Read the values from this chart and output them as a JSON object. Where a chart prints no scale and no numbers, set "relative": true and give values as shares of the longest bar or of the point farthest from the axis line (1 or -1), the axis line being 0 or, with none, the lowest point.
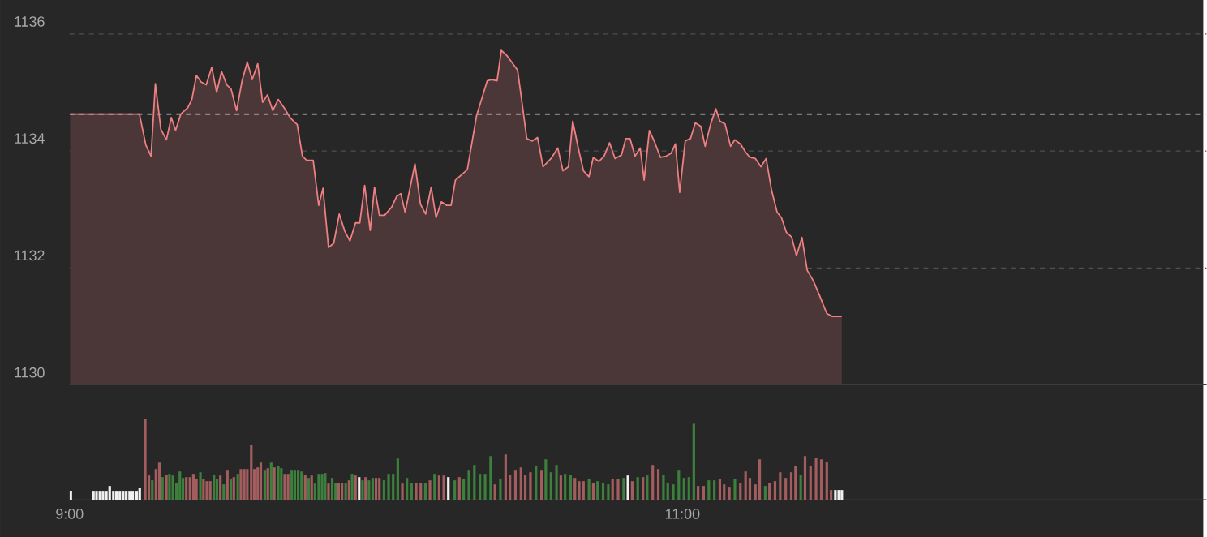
{
  "chart_data": [
    {
      "type": "area",
      "xlim": [
        9,
        12.71
      ],
      "ylim": [
        1130,
        1136.58
      ],
      "yticks": [
        1130,
        1132,
        1134,
        1136
      ],
      "grid": "y",
      "tick_labels": "y",
      "color": "#ee7f82",
      "ref_lines": [
        {
          "axis": "y",
          "value": 1134.63,
          "color": "#d0d0d0",
          "line_style": "dashed"
        }
      ],
      "x": [
        9.002,
        9.228,
        9.249,
        9.266,
        9.28,
        9.298,
        9.316,
        9.332,
        9.346,
        9.363,
        9.386,
        9.399,
        9.414,
        9.429,
        9.446,
        9.464,
        9.48,
        9.496,
        9.513,
        9.527,
        9.545,
        9.563,
        9.58,
        9.596,
        9.614,
        9.63,
        9.646,
        9.663,
        9.681,
        9.7,
        9.721,
        9.743,
        9.76,
        9.774,
        9.795,
        9.813,
        9.827,
        9.845,
        9.862,
        9.88,
        9.898,
        9.915,
        9.933,
        9.947,
        9.963,
        9.981,
        9.995,
        10.011,
        10.028,
        10.051,
        10.067,
        10.081,
        10.095,
        10.127,
        10.145,
        10.162,
        10.18,
        10.196,
        10.213,
        10.231,
        10.245,
        10.259,
        10.298,
        10.328,
        10.363,
        10.377,
        10.395,
        10.409,
        10.427,
        10.462,
        10.474,
        10.492,
        10.51,
        10.527,
        10.545,
        10.571,
        10.593,
        10.61,
        10.628,
        10.642,
        10.66,
        10.677,
        10.695,
        10.709,
        10.727,
        10.744,
        10.762,
        10.78,
        10.801,
        10.815,
        10.829,
        10.845,
        10.862,
        10.875,
        10.892,
        10.91,
        10.928,
        10.946,
        10.963,
        10.977,
        10.991,
        11.009,
        11.026,
        11.042,
        11.06,
        11.074,
        11.092,
        11.109,
        11.122,
        11.139,
        11.157,
        11.171,
        11.189,
        11.206,
        11.22,
        11.238,
        11.256,
        11.273,
        11.291,
        11.309,
        11.323,
        11.339,
        11.356,
        11.372,
        11.39,
        11.407,
        11.427,
        11.448,
        11.471,
        11.489,
        11.52
      ],
      "values": [
        1134.63,
        1134.63,
        1134.1,
        1133.91,
        1135.15,
        1134.37,
        1134.19,
        1134.57,
        1134.35,
        1134.63,
        1134.74,
        1134.88,
        1135.29,
        1135.18,
        1135.13,
        1135.43,
        1135.0,
        1135.36,
        1135.13,
        1135.06,
        1134.69,
        1135.2,
        1135.52,
        1135.22,
        1135.49,
        1134.83,
        1134.96,
        1134.69,
        1134.88,
        1134.74,
        1134.56,
        1134.45,
        1133.91,
        1133.84,
        1133.84,
        1133.07,
        1133.36,
        1132.35,
        1132.42,
        1132.92,
        1132.63,
        1132.46,
        1132.77,
        1132.77,
        1133.41,
        1132.64,
        1133.38,
        1132.9,
        1132.9,
        1133.04,
        1133.22,
        1133.27,
        1132.95,
        1133.78,
        1133.09,
        1132.92,
        1133.38,
        1132.86,
        1133.13,
        1133.07,
        1133.07,
        1133.5,
        1133.68,
        1134.6,
        1135.2,
        1135.22,
        1135.2,
        1135.72,
        1135.63,
        1135.38,
        1134.92,
        1134.21,
        1134.17,
        1134.23,
        1133.73,
        1133.87,
        1134.05,
        1133.66,
        1133.73,
        1134.51,
        1134.05,
        1133.66,
        1133.56,
        1133.89,
        1133.82,
        1133.91,
        1134.14,
        1133.87,
        1133.93,
        1134.21,
        1134.21,
        1133.91,
        1134.05,
        1133.5,
        1134.35,
        1134.14,
        1133.89,
        1133.91,
        1133.96,
        1134.12,
        1133.29,
        1134.17,
        1134.21,
        1134.48,
        1134.42,
        1134.08,
        1134.46,
        1134.72,
        1134.51,
        1134.46,
        1134.08,
        1134.19,
        1134.12,
        1133.98,
        1133.89,
        1133.87,
        1133.73,
        1133.87,
        1133.32,
        1132.95,
        1132.86,
        1132.61,
        1132.53,
        1132.21,
        1132.52,
        1131.96,
        1131.78,
        1131.52,
        1131.22,
        1131.17,
        1131.17
      ]
    },
    {
      "type": "bar",
      "relative": true,
      "xlim": [
        9,
        12.71
      ],
      "xticks": [
        {
          "value": 9,
          "label": "9:00"
        },
        {
          "value": 11,
          "label": "11:00"
        }
      ],
      "tick_labels": "x",
      "x": [
        9.004,
        9.078,
        9.088,
        9.099,
        9.109,
        9.12,
        9.131,
        9.143,
        9.153,
        9.164,
        9.175,
        9.185,
        9.196,
        9.206,
        9.219,
        9.229,
        9.247,
        9.259,
        9.27,
        9.282,
        9.293,
        9.303,
        9.316,
        9.326,
        9.337,
        9.349,
        9.36,
        9.37,
        9.381,
        9.393,
        9.404,
        9.414,
        9.427,
        9.437,
        9.448,
        9.459,
        9.471,
        9.481,
        9.492,
        9.503,
        9.515,
        9.526,
        9.536,
        9.549,
        9.559,
        9.57,
        9.58,
        9.593,
        9.603,
        9.614,
        9.624,
        9.637,
        9.647,
        9.658,
        9.668,
        9.681,
        9.691,
        9.702,
        9.713,
        9.725,
        9.735,
        9.746,
        9.757,
        9.769,
        9.78,
        9.79,
        9.801,
        9.813,
        9.824,
        9.834,
        9.845,
        9.857,
        9.868,
        9.878,
        9.889,
        9.901,
        9.912,
        9.922,
        9.933,
        9.945,
        9.956,
        9.966,
        9.977,
        9.989,
        10.0,
        10.011,
        10.026,
        10.041,
        10.056,
        10.071,
        10.086,
        10.101,
        10.116,
        10.131,
        10.146,
        10.161,
        10.176,
        10.191,
        10.206,
        10.221,
        10.236,
        10.257,
        10.272,
        10.286,
        10.303,
        10.321,
        10.339,
        10.356,
        10.374,
        10.388,
        10.406,
        10.423,
        10.437,
        10.455,
        10.473,
        10.487,
        10.504,
        10.522,
        10.54,
        10.554,
        10.571,
        10.589,
        10.603,
        10.617,
        10.635,
        10.649,
        10.663,
        10.677,
        10.695,
        10.709,
        10.723,
        10.741,
        10.758,
        10.772,
        10.79,
        10.808,
        10.822,
        10.836,
        10.854,
        10.871,
        10.885,
        10.903,
        10.921,
        10.938,
        10.952,
        10.97,
        10.988,
        11.005,
        11.021,
        11.037,
        11.051,
        11.069,
        11.086,
        11.104,
        11.122,
        11.136,
        11.153,
        11.171,
        11.189,
        11.206,
        11.22,
        11.238,
        11.252,
        11.27,
        11.284,
        11.302,
        11.319,
        11.337,
        11.355,
        11.369,
        11.386,
        11.4,
        11.418,
        11.436,
        11.453,
        11.471,
        11.485,
        11.499,
        11.51,
        11.52
      ],
      "values": [
        0.11,
        0.11,
        0.11,
        0.11,
        0.11,
        0.11,
        0.17,
        0.11,
        0.11,
        0.11,
        0.11,
        0.11,
        0.11,
        0.11,
        0.11,
        0.15,
        1.0,
        0.3,
        0.24,
        0.38,
        0.46,
        0.28,
        0.31,
        0.32,
        0.3,
        0.21,
        0.35,
        0.27,
        0.28,
        0.28,
        0.32,
        0.26,
        0.34,
        0.26,
        0.23,
        0.23,
        0.31,
        0.26,
        0.3,
        0.19,
        0.36,
        0.26,
        0.28,
        0.32,
        0.38,
        0.38,
        0.38,
        0.68,
        0.38,
        0.4,
        0.46,
        0.36,
        0.39,
        0.46,
        0.4,
        0.42,
        0.39,
        0.32,
        0.32,
        0.36,
        0.36,
        0.36,
        0.35,
        0.31,
        0.27,
        0.3,
        0.2,
        0.32,
        0.32,
        0.33,
        0.2,
        0.27,
        0.21,
        0.21,
        0.21,
        0.21,
        0.24,
        0.32,
        0.3,
        0.28,
        0.24,
        0.28,
        0.24,
        0.27,
        0.27,
        0.27,
        0.24,
        0.32,
        0.32,
        0.51,
        0.2,
        0.27,
        0.21,
        0.21,
        0.21,
        0.21,
        0.24,
        0.32,
        0.3,
        0.3,
        0.28,
        0.24,
        0.28,
        0.26,
        0.36,
        0.43,
        0.32,
        0.32,
        0.54,
        0.19,
        0.26,
        0.56,
        0.31,
        0.36,
        0.4,
        0.31,
        0.34,
        0.42,
        0.36,
        0.5,
        0.34,
        0.43,
        0.3,
        0.32,
        0.31,
        0.27,
        0.23,
        0.23,
        0.26,
        0.21,
        0.23,
        0.21,
        0.19,
        0.26,
        0.26,
        0.27,
        0.3,
        0.23,
        0.28,
        0.28,
        0.3,
        0.43,
        0.38,
        0.31,
        0.21,
        0.19,
        0.36,
        0.27,
        0.28,
        0.94,
        0.17,
        0.17,
        0.24,
        0.24,
        0.26,
        0.19,
        0.16,
        0.26,
        0.21,
        0.35,
        0.27,
        0.19,
        0.5,
        0.17,
        0.21,
        0.23,
        0.34,
        0.27,
        0.34,
        0.42,
        0.31,
        0.54,
        0.42,
        0.52,
        0.5,
        0.47,
        0.12,
        0.12,
        0.12,
        0.12
      ],
      "colors": [
        "#f0f0f0",
        "#f0f0f0",
        "#f0f0f0",
        "#f0f0f0",
        "#f0f0f0",
        "#f0f0f0",
        "#f0f0f0",
        "#f0f0f0",
        "#f0f0f0",
        "#f0f0f0",
        "#f0f0f0",
        "#f0f0f0",
        "#f0f0f0",
        "#f0f0f0",
        "#f0f0f0",
        "#f0f0f0",
        "#a35d5e",
        "#a35d5e",
        "#3d7f3c",
        "#a35d5e",
        "#a35d5e",
        "#3d7f3c",
        "#a35d5e",
        "#3d7f3c",
        "#3d7f3c",
        "#3d7f3c",
        "#3d7f3c",
        "#3d7f3c",
        "#a35d5e",
        "#a35d5e",
        "#a35d5e",
        "#a35d5e",
        "#3d7f3c",
        "#a35d5e",
        "#a35d5e",
        "#a35d5e",
        "#3d7f3c",
        "#3d7f3c",
        "#a35d5e",
        "#3d7f3c",
        "#a35d5e",
        "#3d7f3c",
        "#a35d5e",
        "#3d7f3c",
        "#a35d5e",
        "#a35d5e",
        "#a35d5e",
        "#a35d5e",
        "#a35d5e",
        "#a35d5e",
        "#a35d5e",
        "#3d7f3c",
        "#a35d5e",
        "#3d7f3c",
        "#a35d5e",
        "#3d7f3c",
        "#3d7f3c",
        "#a35d5e",
        "#a35d5e",
        "#3d7f3c",
        "#3d7f3c",
        "#3d7f3c",
        "#3d7f3c",
        "#a35d5e",
        "#3d7f3c",
        "#a35d5e",
        "#3d7f3c",
        "#3d7f3c",
        "#3d7f3c",
        "#3d7f3c",
        "#a35d5e",
        "#3d7f3c",
        "#3d7f3c",
        "#a35d5e",
        "#a35d5e",
        "#3d7f3c",
        "#a35d5e",
        "#3d7f3c",
        "#a35d5e",
        "#f0f0f0",
        "#3d7f3c",
        "#a35d5e",
        "#3d7f3c",
        "#3d7f3c",
        "#a35d5e",
        "#a35d5e",
        "#3d7f3c",
        "#3d7f3c",
        "#3d7f3c",
        "#3d7f3c",
        "#a35d5e",
        "#3d7f3c",
        "#3d7f3c",
        "#a35d5e",
        "#a35d5e",
        "#3d7f3c",
        "#a35d5e",
        "#3d7f3c",
        "#a35d5e",
        "#a35d5e",
        "#f0f0f0",
        "#3d7f3c",
        "#a35d5e",
        "#3d7f3c",
        "#3d7f3c",
        "#3d7f3c",
        "#3d7f3c",
        "#3d7f3c",
        "#3d7f3c",
        "#a35d5e",
        "#3d7f3c",
        "#a35d5e",
        "#a35d5e",
        "#a35d5e",
        "#a35d5e",
        "#a35d5e",
        "#a35d5e",
        "#3d7f3c",
        "#a35d5e",
        "#3d7f3c",
        "#3d7f3c",
        "#3d7f3c",
        "#a35d5e",
        "#3d7f3c",
        "#3d7f3c",
        "#a35d5e",
        "#a35d5e",
        "#a35d5e",
        "#3d7f3c",
        "#a35d5e",
        "#3d7f3c",
        "#3d7f3c",
        "#3d7f3c",
        "#a35d5e",
        "#a35d5e",
        "#3d7f3c",
        "#f0f0f0",
        "#a35d5e",
        "#3d7f3c",
        "#a35d5e",
        "#3d7f3c",
        "#a35d5e",
        "#a35d5e",
        "#3d7f3c",
        "#3d7f3c",
        "#3d7f3c",
        "#3d7f3c",
        "#3d7f3c",
        "#3d7f3c",
        "#3d7f3c",
        "#a35d5e",
        "#a35d5e",
        "#3d7f3c",
        "#3d7f3c",
        "#a35d5e",
        "#a35d5e",
        "#a35d5e",
        "#3d7f3c",
        "#a35d5e",
        "#a35d5e",
        "#a35d5e",
        "#a35d5e",
        "#a35d5e",
        "#3d7f3c",
        "#a35d5e",
        "#a35d5e",
        "#a35d5e",
        "#a35d5e",
        "#a35d5e",
        "#a35d5e",
        "#3d7f3c",
        "#a35d5e",
        "#a35d5e",
        "#a35d5e",
        "#a35d5e",
        "#a35d5e",
        "#a35d5e",
        "#f0f0f0",
        "#f0f0f0",
        "#f0f0f0"
      ]
    }
  ]
}
